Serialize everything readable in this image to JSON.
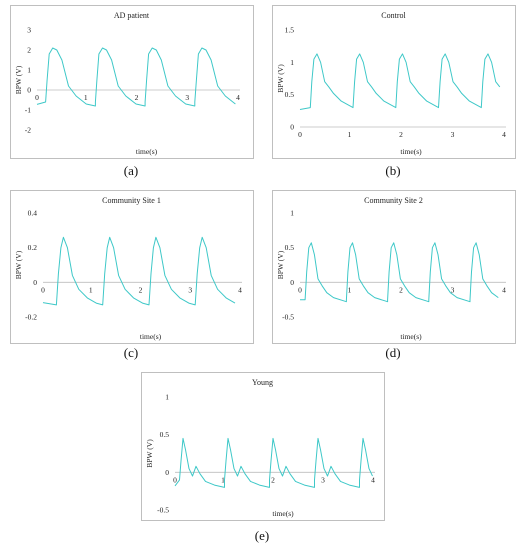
{
  "figure_colors": {
    "line": "#3ec8c8",
    "axis": "#bdbdbd",
    "text": "#222222"
  },
  "chart_data": [
    {
      "type": "line",
      "title": "AD patient",
      "caption": "(a)",
      "xlabel": "time(s)",
      "ylabel": "BPW (V)",
      "xlim": [
        0,
        4
      ],
      "ylim": [
        -2,
        3
      ],
      "xticks": [
        0,
        1,
        2,
        3,
        4
      ],
      "yticks": [
        -2,
        -1,
        0,
        1,
        2,
        3
      ],
      "grid": false,
      "series": [
        {
          "color": "#3ec8c8",
          "period": 0.98,
          "t0": 0.17,
          "tshift": 0.0,
          "x": [
            0,
            0.03,
            0.07,
            0.14,
            0.22,
            0.32,
            0.45,
            0.6,
            0.8,
            0.98
          ],
          "y": [
            -0.6,
            0.5,
            1.8,
            2.1,
            2.0,
            1.5,
            0.2,
            -0.3,
            -0.7,
            -0.8
          ]
        }
      ]
    },
    {
      "type": "line",
      "title": "Control",
      "caption": "(b)",
      "xlabel": "time(s)",
      "ylabel": "BPW (V)",
      "xlim": [
        0,
        4
      ],
      "ylim": [
        0,
        1.5
      ],
      "xticks": [
        0,
        1,
        2,
        3,
        4
      ],
      "yticks": [
        0,
        0.5,
        1,
        1.5
      ],
      "grid": false,
      "series": [
        {
          "color": "#3ec8c8",
          "period": 0.83,
          "t0": 0.2,
          "tshift": 0.0,
          "x": [
            0,
            0.03,
            0.07,
            0.13,
            0.2,
            0.28,
            0.36,
            0.45,
            0.6,
            0.83
          ],
          "y": [
            0.3,
            0.7,
            1.05,
            1.13,
            1.0,
            0.7,
            0.62,
            0.52,
            0.4,
            0.3
          ]
        }
      ]
    },
    {
      "type": "line",
      "title": "Community Site 1",
      "caption": "(c)",
      "xlabel": "time(s)",
      "ylabel": "BPW (V)",
      "xlim": [
        0,
        4
      ],
      "ylim": [
        -0.2,
        0.4
      ],
      "xticks": [
        0,
        1,
        2,
        3,
        4
      ],
      "yticks": [
        -0.2,
        0,
        0.2,
        0.4
      ],
      "grid": false,
      "series": [
        {
          "color": "#3ec8c8",
          "period": 0.93,
          "t0": 0.27,
          "tshift": 0.0,
          "x": [
            0,
            0.04,
            0.09,
            0.14,
            0.22,
            0.32,
            0.45,
            0.62,
            0.8,
            0.93
          ],
          "y": [
            -0.13,
            0.05,
            0.2,
            0.26,
            0.2,
            0.04,
            -0.04,
            -0.09,
            -0.12,
            -0.13
          ]
        }
      ]
    },
    {
      "type": "line",
      "title": "Community Site 2",
      "caption": "(d)",
      "xlabel": "time(s)",
      "ylabel": "BPW (V)",
      "xlim": [
        0,
        4
      ],
      "ylim": [
        -0.5,
        1
      ],
      "xticks": [
        0,
        1,
        2,
        3,
        4
      ],
      "yticks": [
        -0.5,
        0,
        0.5,
        1
      ],
      "grid": false,
      "series": [
        {
          "color": "#3ec8c8",
          "period": 0.8,
          "t0": 0.1,
          "tshift": 0.0,
          "x": [
            0,
            0.03,
            0.07,
            0.12,
            0.18,
            0.25,
            0.33,
            0.42,
            0.55,
            0.8
          ],
          "y": [
            -0.25,
            0.15,
            0.5,
            0.57,
            0.4,
            0.05,
            -0.05,
            -0.15,
            -0.22,
            -0.28
          ]
        }
      ]
    },
    {
      "type": "line",
      "title": "Young",
      "caption": "(e)",
      "xlabel": "time(s)",
      "ylabel": "BPW (V)",
      "xlim": [
        0,
        4
      ],
      "ylim": [
        -0.5,
        1
      ],
      "xticks": [
        0,
        1,
        2,
        3,
        4
      ],
      "yticks": [
        -0.5,
        0,
        0.5,
        1
      ],
      "grid": false,
      "series": [
        {
          "color": "#3ec8c8",
          "period": 0.9,
          "t0": 0.09,
          "tshift": 0.0,
          "x": [
            0,
            0.03,
            0.07,
            0.12,
            0.19,
            0.26,
            0.33,
            0.41,
            0.52,
            0.7,
            0.9
          ],
          "y": [
            -0.1,
            0.15,
            0.45,
            0.3,
            0.05,
            -0.05,
            0.08,
            -0.02,
            -0.12,
            -0.17,
            -0.2
          ]
        }
      ]
    }
  ]
}
